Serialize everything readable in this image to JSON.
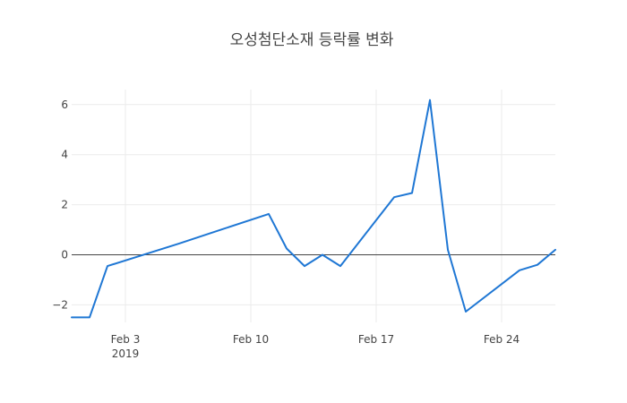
{
  "chart_data": {
    "type": "line",
    "title": "오성첨단소재 등락률 변화",
    "xlabel": "",
    "ylabel": "",
    "year_label": "2019",
    "x_range": [
      "2019-01-31",
      "2019-02-27"
    ],
    "ylim": [
      -2.7,
      6.6
    ],
    "x_ticks": [
      {
        "date": "2019-02-03",
        "label": "Feb 3"
      },
      {
        "date": "2019-02-10",
        "label": "Feb 10"
      },
      {
        "date": "2019-02-17",
        "label": "Feb 17"
      },
      {
        "date": "2019-02-24",
        "label": "Feb 24"
      }
    ],
    "y_ticks": [
      {
        "value": -2,
        "label": "−2"
      },
      {
        "value": 0,
        "label": "0"
      },
      {
        "value": 2,
        "label": "2"
      },
      {
        "value": 4,
        "label": "4"
      },
      {
        "value": 6,
        "label": "6"
      }
    ],
    "grid": true,
    "line_color": "#1f77d4",
    "series": [
      {
        "x": [
          "2019-01-31",
          "2019-02-01",
          "2019-02-02",
          "2019-02-06",
          "2019-02-11",
          "2019-02-12",
          "2019-02-13",
          "2019-02-14",
          "2019-02-15",
          "2019-02-18",
          "2019-02-19",
          "2019-02-20",
          "2019-02-21",
          "2019-02-22",
          "2019-02-25",
          "2019-02-26",
          "2019-02-27"
        ],
        "values": [
          -2.5,
          -2.5,
          -0.45,
          0.45,
          1.63,
          0.25,
          -0.45,
          0.0,
          -0.45,
          2.3,
          2.47,
          6.18,
          0.2,
          -2.27,
          -0.62,
          -0.4,
          0.2
        ]
      }
    ]
  }
}
